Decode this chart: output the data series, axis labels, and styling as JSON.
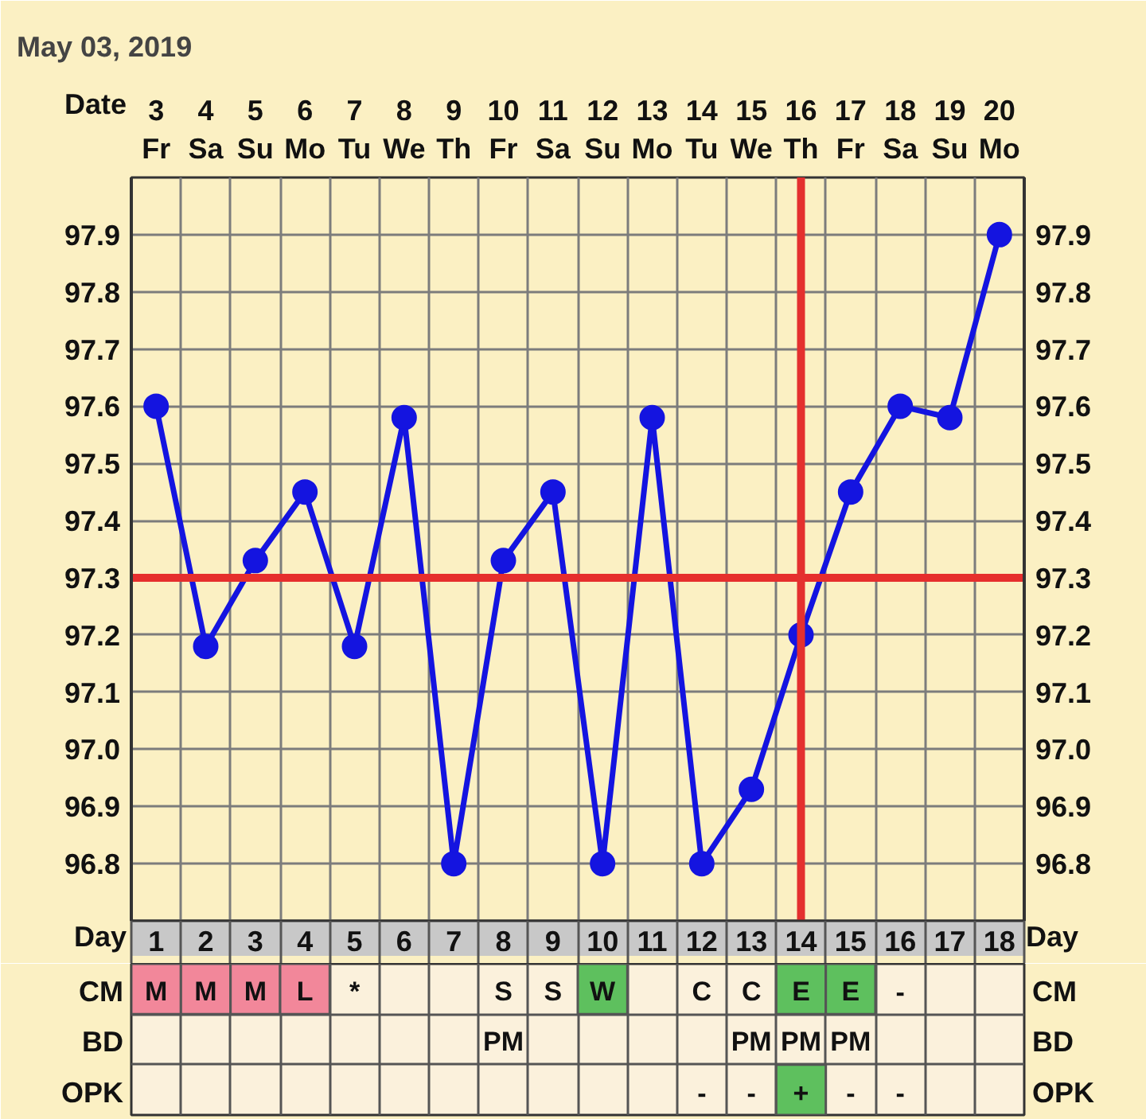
{
  "chart_data": [
    {
      "type": "line",
      "title": "May 03, 2019",
      "xlabel": "Day",
      "x2label": "Date",
      "x": [
        1,
        2,
        3,
        4,
        5,
        6,
        7,
        8,
        9,
        10,
        11,
        12,
        13,
        14,
        15,
        16,
        17,
        18
      ],
      "xlim": [
        0.5,
        18.5
      ],
      "xticks": [
        {
          "value": 0.5,
          "label": null
        },
        1,
        {
          "value": 1.5,
          "label": null
        },
        2,
        {
          "value": 2.5,
          "label": null
        },
        3,
        {
          "value": 3.5,
          "label": null
        },
        4,
        {
          "value": 4.5,
          "label": null
        },
        5,
        {
          "value": 5.5,
          "label": null
        },
        6,
        {
          "value": 6.5,
          "label": null
        },
        7,
        {
          "value": 7.5,
          "label": null
        },
        8,
        {
          "value": 8.5,
          "label": null
        },
        9,
        {
          "value": 9.5,
          "label": null
        },
        10,
        {
          "value": 10.5,
          "label": null
        },
        11,
        {
          "value": 11.5,
          "label": null
        },
        12,
        {
          "value": 12.5,
          "label": null
        },
        13,
        {
          "value": 13.5,
          "label": null
        },
        14,
        {
          "value": 14.5,
          "label": null
        },
        15,
        {
          "value": 15.5,
          "label": null
        },
        16,
        {
          "value": 16.5,
          "label": null
        },
        17,
        {
          "value": 17.5,
          "label": null
        },
        18,
        {
          "value": 18.5,
          "label": null
        }
      ],
      "x2lim": [
        2.5,
        20.5
      ],
      "x2ticks": [
        {
          "value": 3,
          "label": "3\nFr"
        },
        {
          "value": 4,
          "label": "4\nSa"
        },
        {
          "value": 5,
          "label": "5\nSu"
        },
        {
          "value": 6,
          "label": "6\nMo"
        },
        {
          "value": 7,
          "label": "7\nTu"
        },
        {
          "value": 8,
          "label": "8\nWe"
        },
        {
          "value": 9,
          "label": "9\nTh"
        },
        {
          "value": 10,
          "label": "10\nFr"
        },
        {
          "value": 11,
          "label": "11\nSa"
        },
        {
          "value": 12,
          "label": "12\nSu"
        },
        {
          "value": 13,
          "label": "13\nMo"
        },
        {
          "value": 14,
          "label": "14\nTu"
        },
        {
          "value": 15,
          "label": "15\nWe"
        },
        {
          "value": 16,
          "label": "16\nTh"
        },
        {
          "value": 17,
          "label": "17\nFr"
        },
        {
          "value": 18,
          "label": "18\nSa"
        },
        {
          "value": 19,
          "label": "19\nSu"
        },
        {
          "value": 20,
          "label": "20\nMo"
        }
      ],
      "ylim": [
        96.7,
        98.0
      ],
      "yticks": [
        {
          "value": 96.7,
          "label": null
        },
        96.8,
        96.9,
        {
          "value": 97.0,
          "label": "97.0"
        },
        97.1,
        97.2,
        97.3,
        97.4,
        97.5,
        97.6,
        97.7,
        97.8,
        97.9,
        {
          "value": 98.0,
          "label": null
        }
      ],
      "y2lim": [
        96.7,
        98.0
      ],
      "y2ticks": [
        {
          "value": 96.7,
          "label": null
        },
        96.8,
        96.9,
        {
          "value": 97.0,
          "label": "97.0"
        },
        97.1,
        97.2,
        97.3,
        97.4,
        97.5,
        97.6,
        97.7,
        97.8,
        97.9,
        {
          "value": 98.0,
          "label": null
        }
      ],
      "series": [
        {
          "color": "#1414e0",
          "values": [
            97.6,
            97.18,
            97.33,
            97.45,
            97.18,
            97.58,
            96.8,
            97.33,
            97.45,
            96.8,
            97.58,
            96.8,
            96.93,
            97.2,
            97.45,
            97.6,
            97.58,
            97.9
          ]
        }
      ],
      "marker": "circle",
      "line_style": "solid",
      "grid": true,
      "ref_lines": [
        {
          "axis": "y",
          "value": 97.3,
          "color": "#e62e2d"
        },
        {
          "axis": "x",
          "value": 14,
          "color": "#e4302f"
        }
      ]
    },
    {
      "type": "other",
      "categories": [
        null,
        null,
        null,
        null,
        null,
        null,
        null,
        null,
        null,
        null,
        null,
        null,
        null,
        null,
        null,
        null,
        null,
        null
      ],
      "y_categories": [
        "CM",
        "BD",
        "OPK"
      ],
      "y2_categories": [
        "CM",
        "BD",
        "OPK"
      ],
      "cell_labels": [
        [
          "M",
          "M",
          "M",
          "L",
          "*",
          null,
          null,
          "S",
          "S",
          "W",
          null,
          "C",
          "C",
          "E",
          "E",
          "-",
          null,
          null
        ],
        [
          null,
          null,
          null,
          null,
          null,
          null,
          null,
          "PM",
          null,
          null,
          null,
          null,
          "PM",
          "PM",
          "PM",
          null,
          null,
          null
        ],
        [
          null,
          null,
          null,
          null,
          null,
          null,
          null,
          null,
          null,
          null,
          null,
          "-",
          "-",
          "+",
          "-",
          "-",
          null,
          null
        ]
      ],
      "colors": [
        [
          "#f2879a",
          "#f2879a",
          "#f2879a",
          "#f2879a",
          null,
          null,
          null,
          null,
          null,
          "#5ec05e",
          null,
          null,
          null,
          "#5ec05e",
          "#5ec05e",
          null,
          null,
          null
        ],
        [
          null,
          null,
          null,
          null,
          null,
          null,
          null,
          null,
          null,
          null,
          null,
          null,
          null,
          null,
          null,
          null,
          null,
          null
        ],
        [
          null,
          null,
          null,
          null,
          null,
          null,
          null,
          null,
          null,
          null,
          null,
          null,
          null,
          "#5ec05e",
          null,
          null,
          null,
          null
        ]
      ]
    }
  ]
}
